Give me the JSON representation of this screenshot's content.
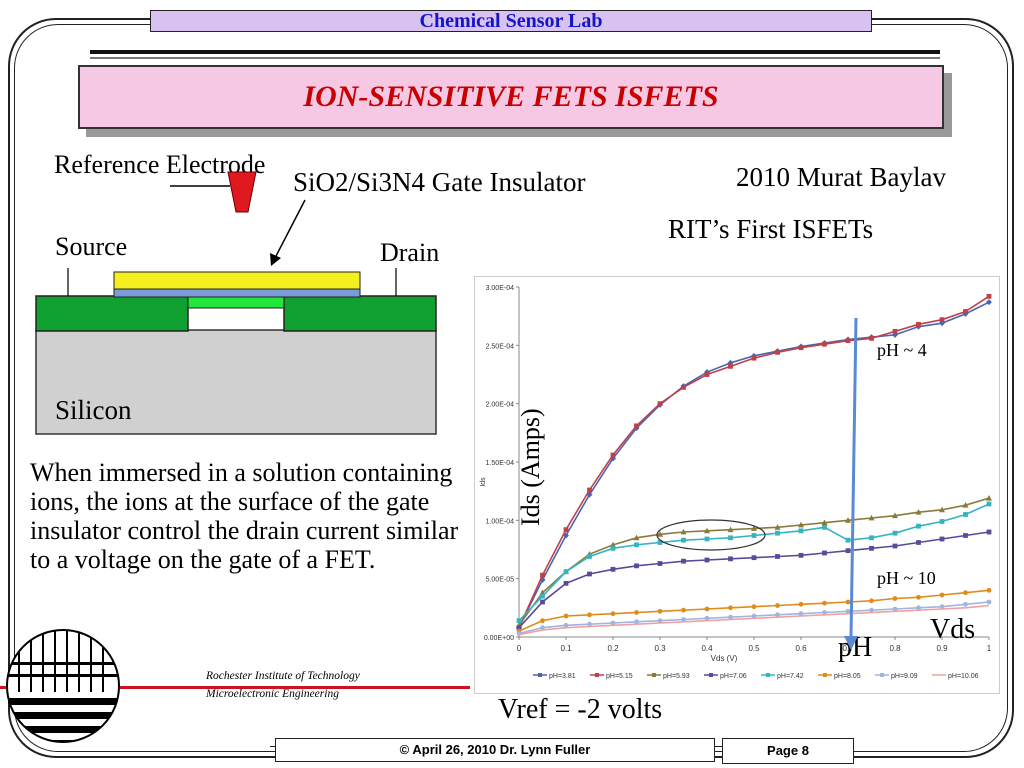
{
  "header": {
    "lab": "Chemical Sensor Lab",
    "title": "ION-SENSITIVE FETS ISFETS"
  },
  "diagram": {
    "reference_electrode": "Reference Electrode",
    "gate_insulator": "SiO2/Si3N4 Gate Insulator",
    "source": "Source",
    "drain": "Drain",
    "silicon": "Silicon"
  },
  "credit": {
    "author_year": "2010 Murat Baylav",
    "caption": "RIT’s First ISFETs"
  },
  "body_text": "When immersed in a solution containing ions, the ions at the surface of the gate insulator control the drain current similar to a voltage on the gate of a FET.",
  "chart_data": {
    "type": "line",
    "x": [
      0,
      0.05,
      0.1,
      0.15,
      0.2,
      0.25,
      0.3,
      0.35,
      0.4,
      0.45,
      0.5,
      0.55,
      0.6,
      0.65,
      0.7,
      0.75,
      0.8,
      0.85,
      0.9,
      0.95,
      1
    ],
    "series": [
      {
        "name": "pH=3.81",
        "color": "#4a66b0",
        "marker": "diamond",
        "values": [
          8e-06,
          4.9e-05,
          8.7e-05,
          0.000122,
          0.000153,
          0.000179,
          0.000199,
          0.000215,
          0.000227,
          0.000235,
          0.000241,
          0.000245,
          0.000249,
          0.000252,
          0.000255,
          0.000257,
          0.000259,
          0.000266,
          0.000269,
          0.000277,
          0.000287
        ]
      },
      {
        "name": "pH=5.15",
        "color": "#c0404a",
        "marker": "square",
        "values": [
          8e-06,
          5.3e-05,
          9.2e-05,
          0.000126,
          0.000156,
          0.000181,
          0.0002,
          0.000214,
          0.000225,
          0.000232,
          0.000239,
          0.000244,
          0.000248,
          0.000251,
          0.000254,
          0.000256,
          0.000262,
          0.000268,
          0.000272,
          0.000279,
          0.000292
        ]
      },
      {
        "name": "pH=5.93",
        "color": "#8a7a3a",
        "marker": "triangle",
        "values": [
          1e-05,
          3.8e-05,
          5.6e-05,
          7.1e-05,
          7.9e-05,
          8.5e-05,
          8.8e-05,
          9e-05,
          9.1e-05,
          9.2e-05,
          9.3e-05,
          9.4e-05,
          9.6e-05,
          9.8e-05,
          0.0001,
          0.000102,
          0.000104,
          0.000107,
          0.000109,
          0.000113,
          0.000119
        ]
      },
      {
        "name": "pH=7.06",
        "color": "#5a4a9a",
        "marker": "square",
        "values": [
          8e-06,
          3e-05,
          4.6e-05,
          5.4e-05,
          5.8e-05,
          6.1e-05,
          6.3e-05,
          6.5e-05,
          6.6e-05,
          6.7e-05,
          6.8e-05,
          6.9e-05,
          7e-05,
          7.2e-05,
          7.4e-05,
          7.6e-05,
          7.8e-05,
          8.1e-05,
          8.4e-05,
          8.7e-05,
          9e-05
        ]
      },
      {
        "name": "pH=7.42",
        "color": "#34b4c0",
        "marker": "square",
        "values": [
          1.4e-05,
          3.5e-05,
          5.6e-05,
          6.9e-05,
          7.6e-05,
          7.9e-05,
          8.1e-05,
          8.3e-05,
          8.4e-05,
          8.5e-05,
          8.7e-05,
          8.9e-05,
          9.1e-05,
          9.4e-05,
          8.3e-05,
          8.5e-05,
          8.9e-05,
          9.5e-05,
          9.9e-05,
          0.000105,
          0.000114
        ]
      },
      {
        "name": "pH=8.05",
        "color": "#e08c1a",
        "marker": "circle",
        "values": [
          5e-06,
          1.4e-05,
          1.8e-05,
          1.9e-05,
          2e-05,
          2.1e-05,
          2.2e-05,
          2.3e-05,
          2.4e-05,
          2.5e-05,
          2.6e-05,
          2.7e-05,
          2.8e-05,
          2.9e-05,
          3e-05,
          3.1e-05,
          3.3e-05,
          3.4e-05,
          3.6e-05,
          3.8e-05,
          4e-05
        ]
      },
      {
        "name": "pH=9.09",
        "color": "#a0b4e0",
        "marker": "circle",
        "values": [
          3e-06,
          8e-06,
          1e-05,
          1.1e-05,
          1.2e-05,
          1.3e-05,
          1.4e-05,
          1.5e-05,
          1.6e-05,
          1.7e-05,
          1.8e-05,
          1.9e-05,
          2e-05,
          2.1e-05,
          2.2e-05,
          2.3e-05,
          2.4e-05,
          2.5e-05,
          2.6e-05,
          2.8e-05,
          3e-05
        ]
      },
      {
        "name": "pH=10.06",
        "color": "#f0a0a0",
        "marker": "none",
        "values": [
          2e-06,
          6e-06,
          8e-06,
          9e-06,
          1e-05,
          1.1e-05,
          1.2e-05,
          1.3e-05,
          1.4e-05,
          1.5e-05,
          1.6e-05,
          1.7e-05,
          1.8e-05,
          1.9e-05,
          2e-05,
          2.1e-05,
          2.2e-05,
          2.3e-05,
          2.4e-05,
          2.5e-05,
          2.7e-05
        ]
      }
    ],
    "xlim": [
      0,
      1
    ],
    "ylim": [
      0,
      0.0003
    ],
    "x_ticks": [
      "0",
      "0.1",
      "0.2",
      "0.3",
      "0.4",
      "0.5",
      "0.6",
      "0.7",
      "0.8",
      "0.9",
      "1"
    ],
    "y_ticks": [
      "0.00E+00",
      "5.00E-05",
      "1.00E-04",
      "1.50E-04",
      "2.00E-04",
      "2.50E-04",
      "3.00E-04"
    ],
    "xlabel": "Vds (V)",
    "ylabel": "Ids",
    "legend": "bottom",
    "grid": false,
    "annotations": {
      "ids_label": "Ids (Amps)",
      "vds_label": "Vds",
      "ph_label": "pH",
      "ph4_label": "pH ~ 4",
      "ph10_label": "pH ~ 10"
    }
  },
  "vref": "Vref = -2 volts",
  "logo_text": {
    "line1": "Rochester Institute of Technology",
    "line2": "Microelectronic Engineering"
  },
  "footer": {
    "copyright": "© April 26, 2010    Dr. Lynn Fuller",
    "page": "Page 8"
  }
}
